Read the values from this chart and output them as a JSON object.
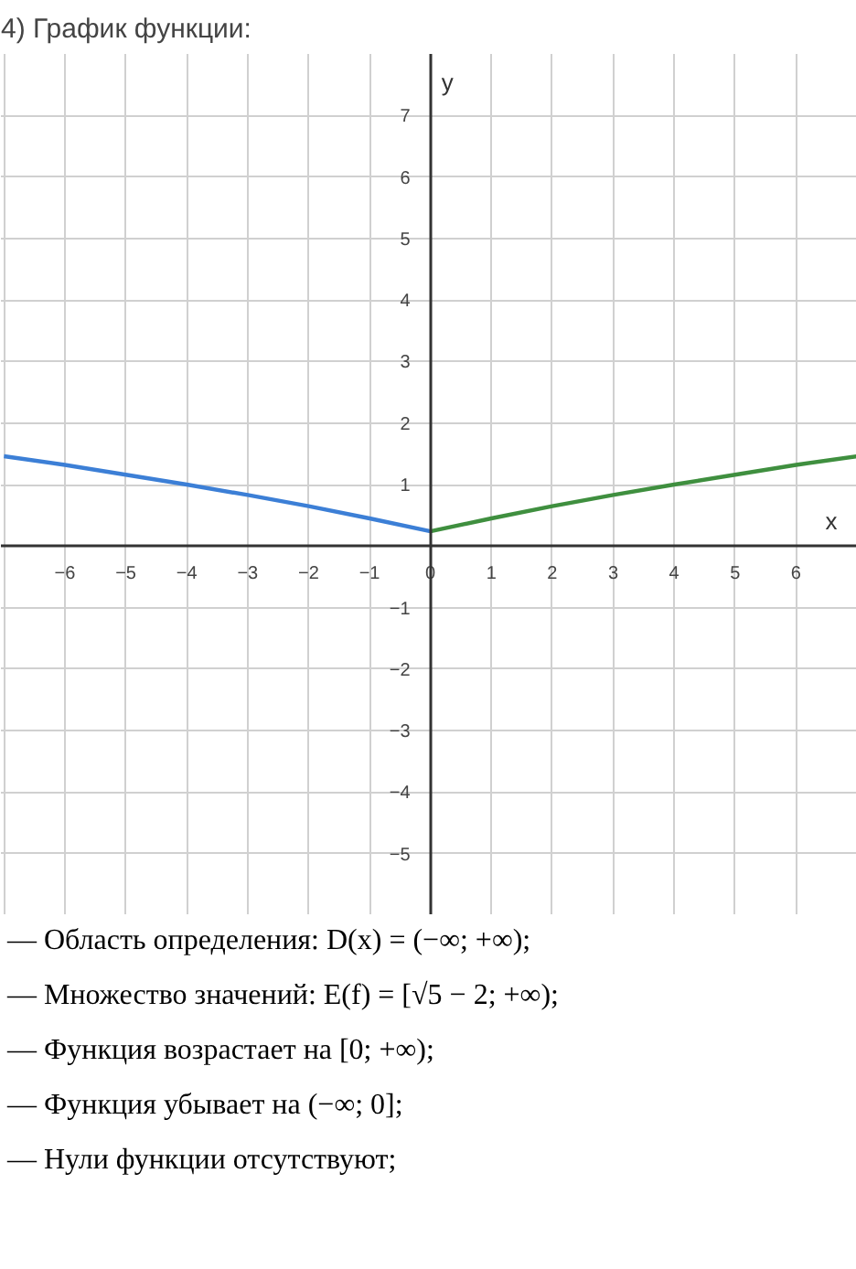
{
  "chart_data": {
    "type": "line",
    "title": "4) График функции:",
    "xlabel": "x",
    "ylabel": "y",
    "series": [
      {
        "color": "#3c7fd6",
        "x": [
          -7,
          -6,
          -5,
          -4,
          -3,
          -2,
          -1,
          0
        ],
        "values": [
          1.46,
          1.32,
          1.16,
          1.0,
          0.83,
          0.65,
          0.45,
          0.24
        ]
      },
      {
        "color": "#3f8f3f",
        "x": [
          0,
          1,
          2,
          3,
          4,
          5,
          6,
          7
        ],
        "values": [
          0.24,
          0.45,
          0.65,
          0.83,
          1.0,
          1.16,
          1.32,
          1.46
        ]
      }
    ],
    "xlim": [
      -7.05,
      7.0
    ],
    "ylim": [
      -6,
      8
    ],
    "xticks": [
      -6,
      -5,
      -4,
      -3,
      -2,
      -1,
      0,
      1,
      2,
      3,
      4,
      5,
      6
    ],
    "yticks": [
      -5,
      -4,
      -3,
      -2,
      -1,
      1,
      2,
      3,
      4,
      5,
      6,
      7
    ],
    "grid": true,
    "marker": "none",
    "line_style": "solid",
    "annotations": [
      "— Область определения:  D(x) = (−∞; +∞);",
      "— Множество значений:  E(f) = [√5 − 2; +∞);",
      "— Функция возрастает на  [0; +∞);",
      "— Функция убывает на (−∞; 0];",
      "— Нули функции отсутствуют;"
    ]
  }
}
